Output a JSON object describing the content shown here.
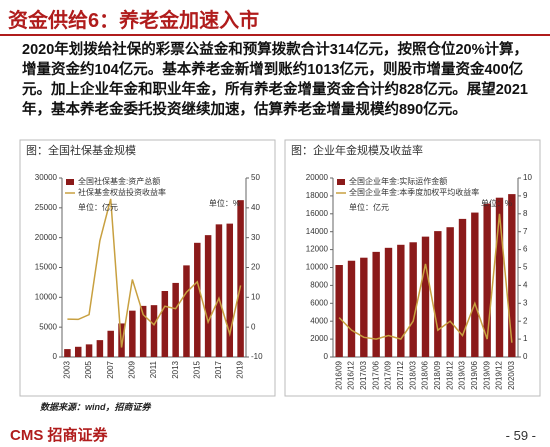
{
  "header": {
    "title": "资金供给6：养老金加速入市"
  },
  "paragraph": "2020年划拨给社保的彩票公益金和预算拨款合计314亿元，按照仓位20%计算，增量资金约104亿元。基本养老金新增到账约1013亿元，则股市增量资金400亿元。加上企业年金和职业年金，所有养老金增量资金合计约828亿元。展望2021年，基本养老金委托投资继续加速，估算养老金增量规模约890亿元。",
  "chart_data": [
    {
      "type": "bar",
      "title": "图：全国社保基金规模",
      "y_unit": "单位：亿元",
      "y2_unit": "单位：%",
      "categories": [
        "2003",
        null,
        "2005",
        null,
        "2007",
        null,
        "2009",
        null,
        "2011",
        null,
        "2013",
        null,
        "2015",
        null,
        "2017",
        null,
        "2019"
      ],
      "series": [
        {
          "name": "全国社保基金:资产总额",
          "type": "bar",
          "color": "#8b1a1a",
          "values": [
            1325,
            1711,
            2118,
            2828,
            4397,
            5624,
            7767,
            8567,
            8688,
            11060,
            12416,
            15356,
            19138,
            20423,
            22231,
            22354,
            26285
          ]
        },
        {
          "name": "社保基金权益投资收益率",
          "type": "line",
          "axis": "y2",
          "color": "#c8a040",
          "values": [
            2.7,
            2.6,
            4.2,
            29,
            43,
            -6.8,
            16,
            4.2,
            0.8,
            7,
            6.2,
            11.7,
            15.2,
            1.7,
            9.7,
            -2.3,
            14
          ]
        }
      ],
      "ylim": [
        0,
        30000
      ],
      "yticks": [
        0,
        5000,
        10000,
        15000,
        20000,
        25000,
        30000
      ],
      "y2lim": [
        -10,
        50
      ],
      "y2ticks": [
        -10,
        0,
        10,
        20,
        30,
        40,
        50
      ]
    },
    {
      "type": "bar",
      "title": "图：企业年金规模及收益率",
      "y_unit": "单位：亿元",
      "y2_unit": "单位：%",
      "categories": [
        "2016/09",
        "2016/12",
        "2017/03",
        "2017/06",
        "2017/09",
        "2017/12",
        "2018/03",
        "2018/06",
        "2018/09",
        "2018/12",
        "2019/03",
        "2019/06",
        "2019/09",
        "2019/12",
        "2020/03"
      ],
      "series": [
        {
          "name": "全国企业年金:实际运作金额",
          "type": "bar",
          "color": "#8b1a1a",
          "values": [
            10278,
            10756,
            11095,
            11746,
            12199,
            12538,
            12818,
            13449,
            14065,
            14502,
            15431,
            16137,
            17148,
            17800,
            18200
          ]
        },
        {
          "name": "全国企业年金:本季度加权平均收益率",
          "type": "line",
          "axis": "y2",
          "color": "#c8a040",
          "values": [
            2.2,
            1.5,
            1.1,
            1,
            1.2,
            1,
            2,
            5.2,
            1.5,
            2,
            1.2,
            3,
            1,
            8,
            0.8
          ]
        }
      ],
      "ylim": [
        0,
        20000
      ],
      "yticks": [
        0,
        2000,
        4000,
        6000,
        8000,
        10000,
        12000,
        14000,
        16000,
        18000,
        20000
      ],
      "y2lim": [
        0,
        10
      ],
      "y2ticks": [
        0,
        1,
        2,
        3,
        4,
        5,
        6,
        7,
        8,
        9,
        10
      ]
    }
  ],
  "source": "数据来源：wind，招商证券",
  "footer": {
    "brand": "CMS 招商证券",
    "page": "- 59 -"
  }
}
